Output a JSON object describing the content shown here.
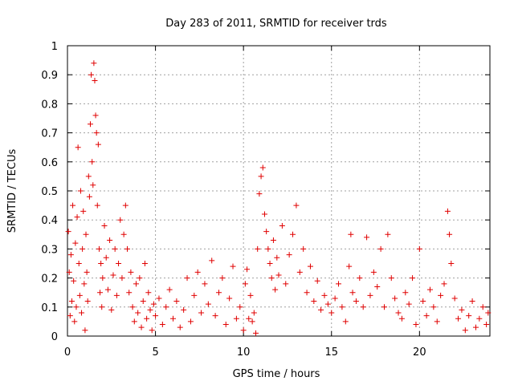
{
  "chart_data": {
    "type": "scatter",
    "title": "Day 283 of 2011, SRMTID for receiver trds",
    "xlabel": "GPS time / hours",
    "ylabel": "SRMTID / TECUs",
    "xlim": [
      0,
      24
    ],
    "ylim": [
      0,
      1
    ],
    "x_ticks": [
      0,
      5,
      10,
      15,
      20
    ],
    "y_ticks": [
      0,
      0.1,
      0.2,
      0.3,
      0.4,
      0.5,
      0.6,
      0.7,
      0.8,
      0.9,
      1
    ],
    "x_tick_labels": [
      "0",
      "5",
      "10",
      "15",
      "20"
    ],
    "y_tick_labels": [
      "0",
      "0.1",
      "0.2",
      "0.3",
      "0.4",
      "0.5",
      "0.6",
      "0.7",
      "0.8",
      "0.9",
      "1"
    ],
    "grid": true,
    "marker": "+",
    "color": "#e00000",
    "series": [
      {
        "name": "SRMTID",
        "points": [
          [
            0.05,
            0.36
          ],
          [
            0.1,
            0.22
          ],
          [
            0.15,
            0.07
          ],
          [
            0.2,
            0.28
          ],
          [
            0.25,
            0.12
          ],
          [
            0.3,
            0.45
          ],
          [
            0.35,
            0.19
          ],
          [
            0.4,
            0.05
          ],
          [
            0.45,
            0.32
          ],
          [
            0.5,
            0.1
          ],
          [
            0.55,
            0.41
          ],
          [
            0.6,
            0.65
          ],
          [
            0.65,
            0.25
          ],
          [
            0.7,
            0.14
          ],
          [
            0.75,
            0.5
          ],
          [
            0.8,
            0.08
          ],
          [
            0.85,
            0.3
          ],
          [
            0.9,
            0.43
          ],
          [
            0.95,
            0.18
          ],
          [
            1.0,
            0.02
          ],
          [
            1.05,
            0.35
          ],
          [
            1.1,
            0.22
          ],
          [
            1.15,
            0.12
          ],
          [
            1.2,
            0.55
          ],
          [
            1.25,
            0.48
          ],
          [
            1.3,
            0.73
          ],
          [
            1.35,
            0.9
          ],
          [
            1.4,
            0.6
          ],
          [
            1.45,
            0.52
          ],
          [
            1.5,
            0.94
          ],
          [
            1.55,
            0.88
          ],
          [
            1.6,
            0.76
          ],
          [
            1.65,
            0.7
          ],
          [
            1.7,
            0.45
          ],
          [
            1.75,
            0.66
          ],
          [
            1.8,
            0.3
          ],
          [
            1.85,
            0.15
          ],
          [
            1.9,
            0.25
          ],
          [
            1.95,
            0.1
          ],
          [
            2.0,
            0.2
          ],
          [
            2.1,
            0.38
          ],
          [
            2.2,
            0.27
          ],
          [
            2.3,
            0.16
          ],
          [
            2.4,
            0.33
          ],
          [
            2.5,
            0.09
          ],
          [
            2.6,
            0.21
          ],
          [
            2.7,
            0.3
          ],
          [
            2.8,
            0.14
          ],
          [
            2.9,
            0.25
          ],
          [
            3.0,
            0.4
          ],
          [
            3.1,
            0.2
          ],
          [
            3.2,
            0.35
          ],
          [
            3.3,
            0.45
          ],
          [
            3.4,
            0.3
          ],
          [
            3.5,
            0.15
          ],
          [
            3.6,
            0.22
          ],
          [
            3.7,
            0.1
          ],
          [
            3.8,
            0.05
          ],
          [
            3.9,
            0.18
          ],
          [
            4.0,
            0.08
          ],
          [
            4.1,
            0.2
          ],
          [
            4.2,
            0.03
          ],
          [
            4.3,
            0.12
          ],
          [
            4.4,
            0.25
          ],
          [
            4.5,
            0.06
          ],
          [
            4.6,
            0.15
          ],
          [
            4.7,
            0.09
          ],
          [
            4.8,
            0.02
          ],
          [
            4.9,
            0.11
          ],
          [
            5.0,
            0.07
          ],
          [
            5.2,
            0.13
          ],
          [
            5.4,
            0.04
          ],
          [
            5.6,
            0.1
          ],
          [
            5.8,
            0.16
          ],
          [
            6.0,
            0.06
          ],
          [
            6.2,
            0.12
          ],
          [
            6.4,
            0.03
          ],
          [
            6.6,
            0.09
          ],
          [
            6.8,
            0.2
          ],
          [
            7.0,
            0.05
          ],
          [
            7.2,
            0.14
          ],
          [
            7.4,
            0.22
          ],
          [
            7.6,
            0.08
          ],
          [
            7.8,
            0.18
          ],
          [
            8.0,
            0.11
          ],
          [
            8.2,
            0.26
          ],
          [
            8.4,
            0.07
          ],
          [
            8.6,
            0.15
          ],
          [
            8.8,
            0.2
          ],
          [
            9.0,
            0.04
          ],
          [
            9.2,
            0.13
          ],
          [
            9.4,
            0.24
          ],
          [
            9.6,
            0.06
          ],
          [
            9.8,
            0.1
          ],
          [
            10.0,
            0.02
          ],
          [
            10.1,
            0.18
          ],
          [
            10.2,
            0.23
          ],
          [
            10.3,
            0.06
          ],
          [
            10.4,
            0.14
          ],
          [
            10.5,
            0.05
          ],
          [
            10.6,
            0.08
          ],
          [
            10.7,
            0.01
          ],
          [
            10.8,
            0.3
          ],
          [
            10.9,
            0.49
          ],
          [
            11.0,
            0.55
          ],
          [
            11.1,
            0.58
          ],
          [
            11.2,
            0.42
          ],
          [
            11.3,
            0.36
          ],
          [
            11.4,
            0.3
          ],
          [
            11.5,
            0.25
          ],
          [
            11.6,
            0.2
          ],
          [
            11.7,
            0.33
          ],
          [
            11.8,
            0.16
          ],
          [
            11.9,
            0.27
          ],
          [
            12.0,
            0.21
          ],
          [
            12.2,
            0.38
          ],
          [
            12.4,
            0.18
          ],
          [
            12.6,
            0.28
          ],
          [
            12.8,
            0.35
          ],
          [
            13.0,
            0.45
          ],
          [
            13.2,
            0.22
          ],
          [
            13.4,
            0.3
          ],
          [
            13.6,
            0.15
          ],
          [
            13.8,
            0.24
          ],
          [
            14.0,
            0.12
          ],
          [
            14.2,
            0.19
          ],
          [
            14.4,
            0.09
          ],
          [
            14.6,
            0.14
          ],
          [
            14.8,
            0.11
          ],
          [
            15.0,
            0.08
          ],
          [
            15.2,
            0.13
          ],
          [
            15.4,
            0.18
          ],
          [
            15.6,
            0.1
          ],
          [
            15.8,
            0.05
          ],
          [
            16.0,
            0.24
          ],
          [
            16.1,
            0.35
          ],
          [
            16.2,
            0.15
          ],
          [
            16.4,
            0.12
          ],
          [
            16.6,
            0.2
          ],
          [
            16.8,
            0.1
          ],
          [
            17.0,
            0.34
          ],
          [
            17.2,
            0.14
          ],
          [
            17.4,
            0.22
          ],
          [
            17.6,
            0.17
          ],
          [
            17.8,
            0.3
          ],
          [
            18.0,
            0.1
          ],
          [
            18.2,
            0.35
          ],
          [
            18.4,
            0.2
          ],
          [
            18.6,
            0.13
          ],
          [
            18.8,
            0.08
          ],
          [
            19.0,
            0.06
          ],
          [
            19.2,
            0.15
          ],
          [
            19.4,
            0.11
          ],
          [
            19.6,
            0.2
          ],
          [
            19.8,
            0.04
          ],
          [
            20.0,
            0.3
          ],
          [
            20.2,
            0.12
          ],
          [
            20.4,
            0.07
          ],
          [
            20.6,
            0.16
          ],
          [
            20.8,
            0.1
          ],
          [
            21.0,
            0.05
          ],
          [
            21.2,
            0.14
          ],
          [
            21.4,
            0.18
          ],
          [
            21.6,
            0.43
          ],
          [
            21.7,
            0.35
          ],
          [
            21.8,
            0.25
          ],
          [
            22.0,
            0.13
          ],
          [
            22.2,
            0.06
          ],
          [
            22.4,
            0.09
          ],
          [
            22.6,
            0.02
          ],
          [
            22.8,
            0.07
          ],
          [
            23.0,
            0.12
          ],
          [
            23.2,
            0.03
          ],
          [
            23.4,
            0.06
          ],
          [
            23.6,
            0.1
          ],
          [
            23.8,
            0.04
          ],
          [
            23.9,
            0.08
          ]
        ]
      }
    ]
  }
}
